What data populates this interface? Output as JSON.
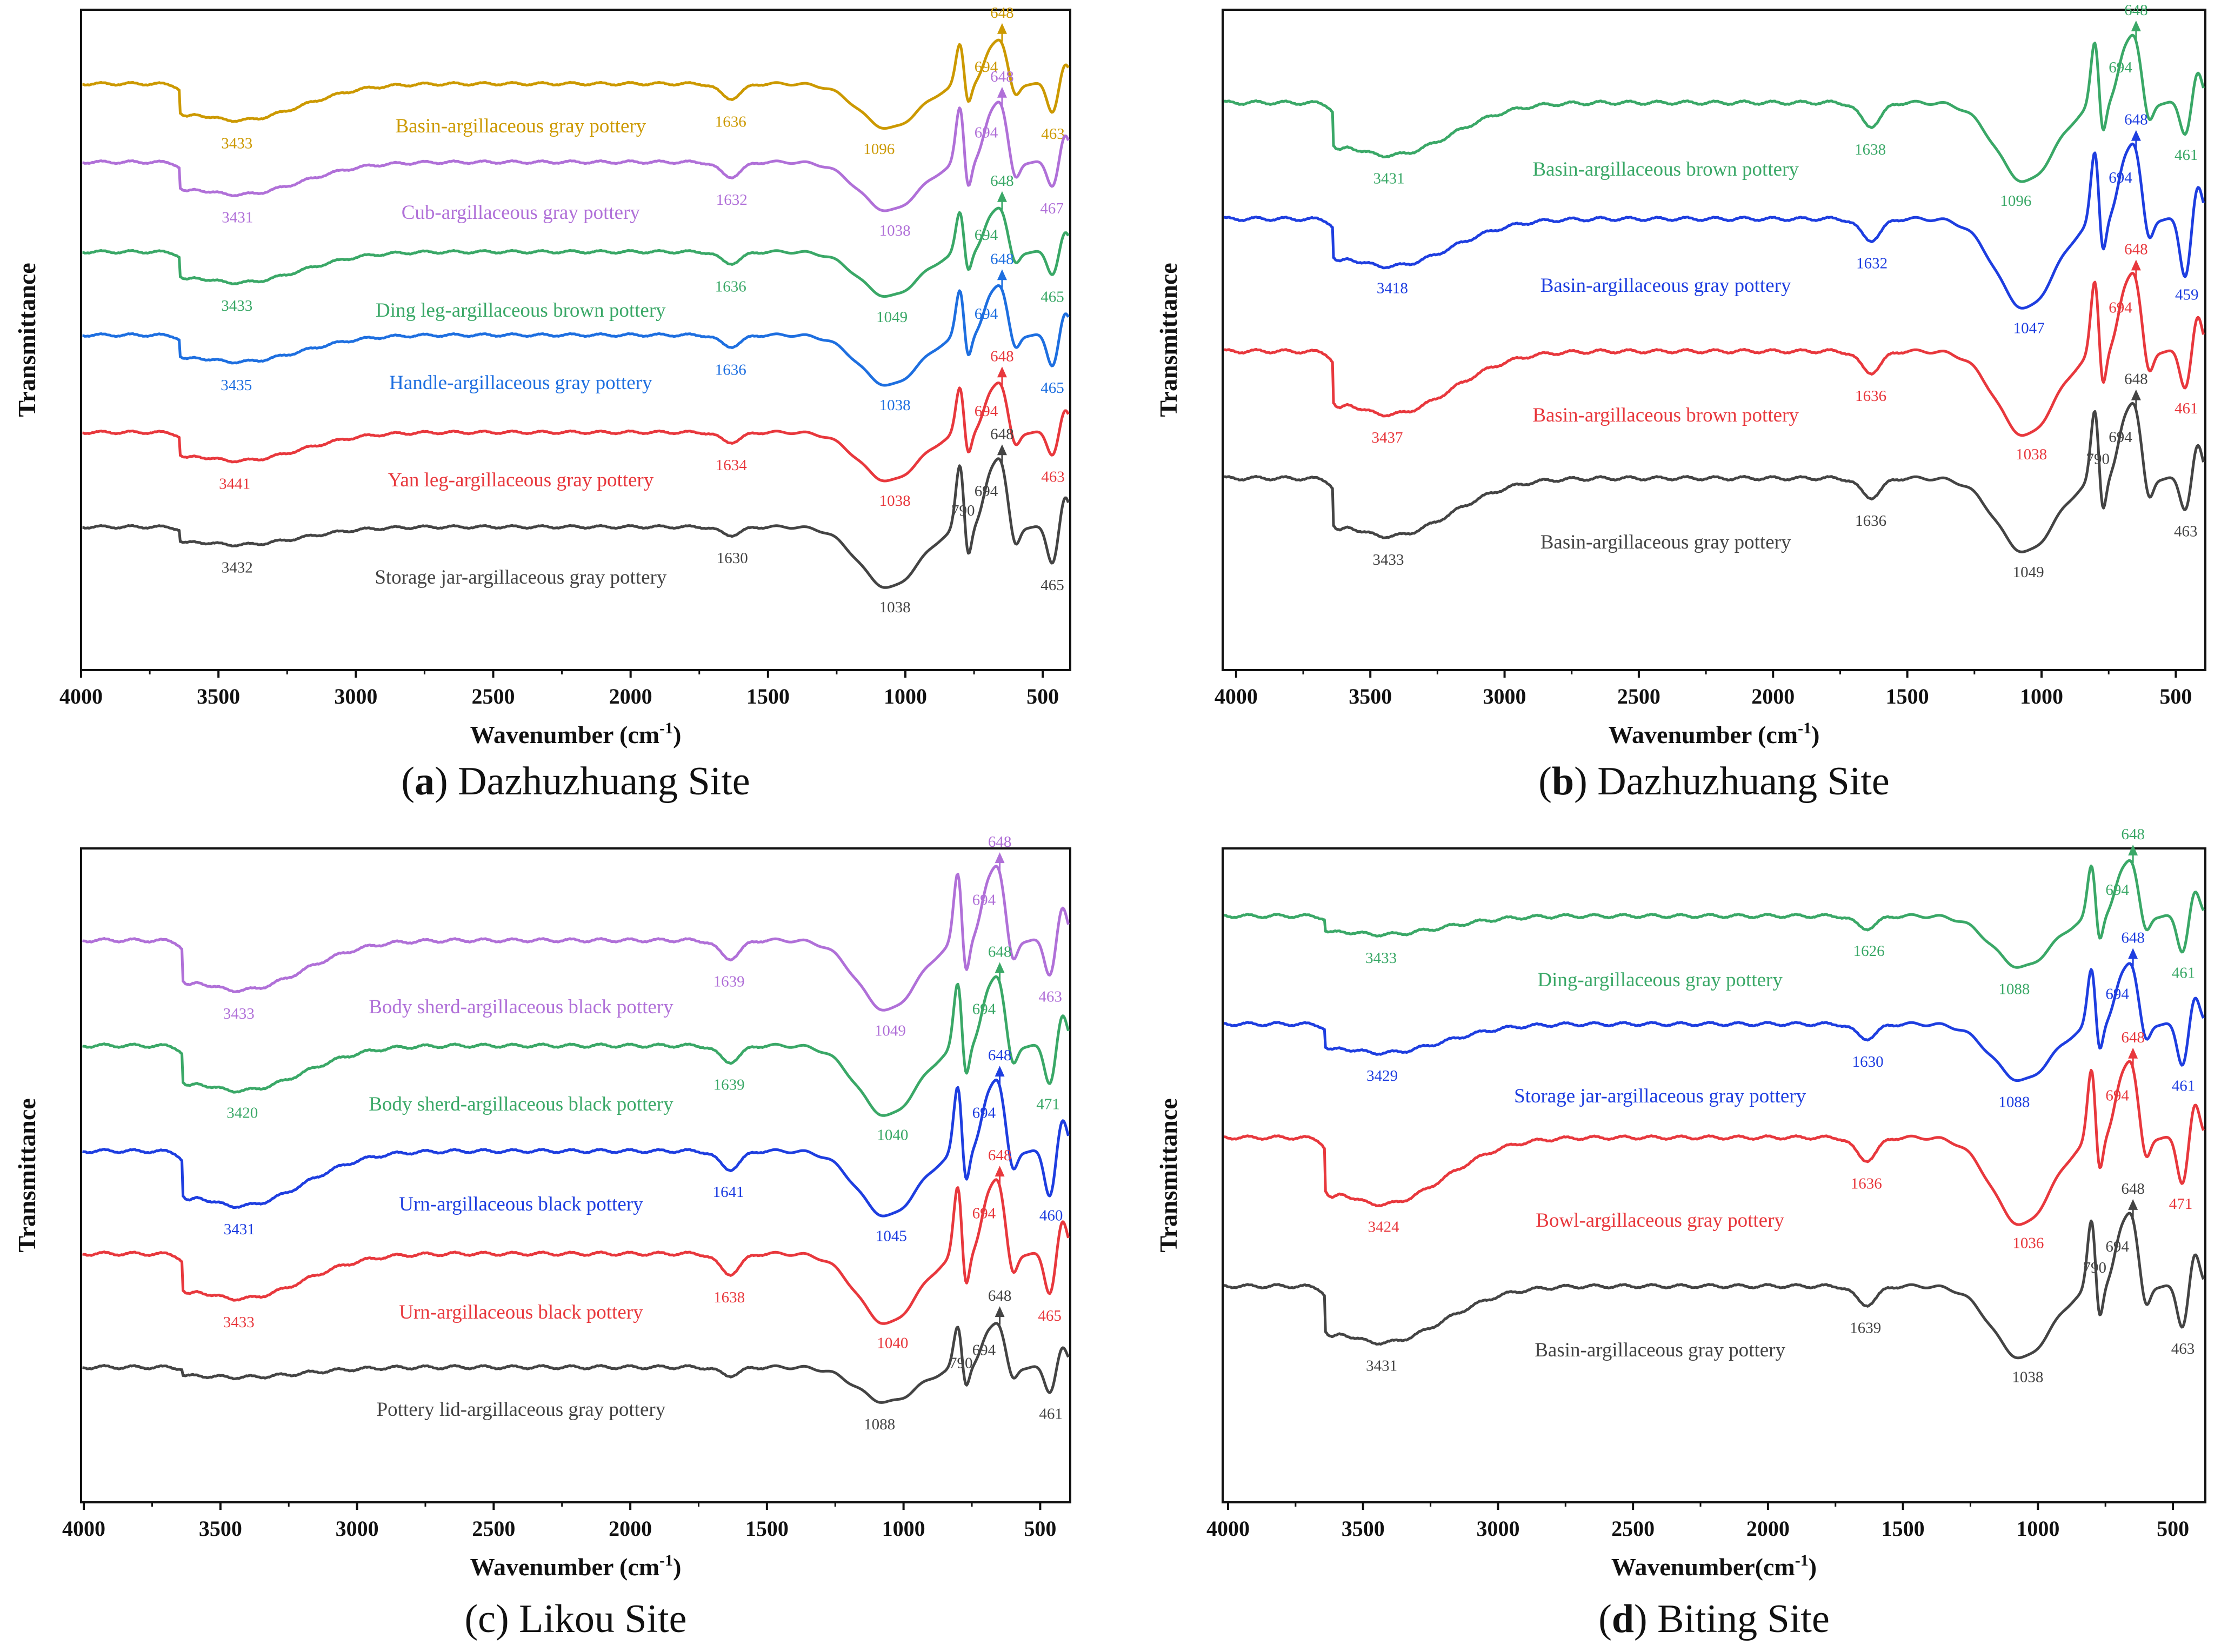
{
  "chart_data": [
    {
      "panel": "a",
      "type": "line",
      "title_letter": "a",
      "title_text": " Dazhuzhuang Site",
      "title_style": "bold-letter-paren",
      "xlabel": "Wavenumber (cm",
      "xlabel_sup": "-1",
      "xlabel_tail": ")",
      "ylabel": "Transmittance",
      "xlim": [
        4000,
        400
      ],
      "xticks": [
        4000,
        3500,
        3000,
        2500,
        2000,
        1500,
        1000,
        500
      ],
      "xlabel_style": "bold",
      "series": [
        {
          "name": "Basin-argillaceous gray pottery",
          "color": "#cc9900",
          "peaks": [
            {
              "label": "3433",
              "x": 3433
            },
            {
              "label": "1636",
              "x": 1636
            },
            {
              "label": "1096",
              "x": 1096
            },
            {
              "label": "694",
              "x": 694
            },
            {
              "label": "648",
              "x": 648,
              "arrow": true
            },
            {
              "label": "463",
              "x": 463
            }
          ]
        },
        {
          "name": "Cub-argillaceous gray pottery",
          "color": "#b070d8",
          "peaks": [
            {
              "label": "3431",
              "x": 3431
            },
            {
              "label": "1632",
              "x": 1632
            },
            {
              "label": "1038",
              "x": 1038
            },
            {
              "label": "694",
              "x": 694
            },
            {
              "label": "648",
              "x": 648,
              "arrow": true
            },
            {
              "label": "467",
              "x": 467
            }
          ]
        },
        {
          "name": "Ding leg-argillaceous brown pottery",
          "color": "#3aa867",
          "peaks": [
            {
              "label": "3433",
              "x": 3433
            },
            {
              "label": "1636",
              "x": 1636
            },
            {
              "label": "1049",
              "x": 1049
            },
            {
              "label": "694",
              "x": 694
            },
            {
              "label": "648",
              "x": 648,
              "arrow": true
            },
            {
              "label": "465",
              "x": 465
            }
          ]
        },
        {
          "name": "Handle-argillaceous gray pottery",
          "color": "#1e6fe0",
          "peaks": [
            {
              "label": "3435",
              "x": 3435
            },
            {
              "label": "1636",
              "x": 1636
            },
            {
              "label": "1038",
              "x": 1038
            },
            {
              "label": "694",
              "x": 694
            },
            {
              "label": "648",
              "x": 648,
              "arrow": true
            },
            {
              "label": "465",
              "x": 465
            }
          ]
        },
        {
          "name": "Yan leg-argillaceous gray pottery",
          "color": "#e8383d",
          "peaks": [
            {
              "label": "3441",
              "x": 3441
            },
            {
              "label": "1634",
              "x": 1634
            },
            {
              "label": "1038",
              "x": 1038
            },
            {
              "label": "694",
              "x": 694
            },
            {
              "label": "648",
              "x": 648,
              "arrow": true
            },
            {
              "label": "463",
              "x": 463
            }
          ]
        },
        {
          "name": "Storage jar-argillaceous gray pottery",
          "color": "#444444",
          "peaks": [
            {
              "label": "3432",
              "x": 3432
            },
            {
              "label": "1630",
              "x": 1630
            },
            {
              "label": "1038",
              "x": 1038
            },
            {
              "label": "790",
              "x": 790
            },
            {
              "label": "694",
              "x": 694
            },
            {
              "label": "648",
              "x": 648,
              "arrow": true
            },
            {
              "label": "465",
              "x": 465
            }
          ]
        }
      ]
    },
    {
      "panel": "b",
      "type": "line",
      "title_letter": "b",
      "title_text": " Dazhuzhuang Site",
      "title_style": "bold-letter-paren",
      "xlabel": "Wavenumber (cm",
      "xlabel_sup": "-1",
      "xlabel_tail": ")",
      "ylabel": "Transmittance",
      "xlim": [
        4050,
        390
      ],
      "xticks": [
        4000,
        3500,
        3000,
        2500,
        2000,
        1500,
        1000,
        500
      ],
      "xlabel_style": "bold",
      "series": [
        {
          "name": "Basin-argillaceous brown pottery",
          "color": "#3aa867",
          "peaks": [
            {
              "label": "3431",
              "x": 3431
            },
            {
              "label": "1638",
              "x": 1638
            },
            {
              "label": "1096",
              "x": 1096
            },
            {
              "label": "694",
              "x": 694
            },
            {
              "label": "648",
              "x": 648,
              "arrow": true
            },
            {
              "label": "461",
              "x": 461
            }
          ]
        },
        {
          "name": "Basin-argillaceous gray pottery",
          "color": "#1e3ee0",
          "peaks": [
            {
              "label": "3418",
              "x": 3418
            },
            {
              "label": "1632",
              "x": 1632
            },
            {
              "label": "1047",
              "x": 1047
            },
            {
              "label": "694",
              "x": 694
            },
            {
              "label": "648",
              "x": 648,
              "arrow": true
            },
            {
              "label": "459",
              "x": 459
            }
          ]
        },
        {
          "name": "Basin-argillaceous brown pottery",
          "color": "#e8383d",
          "peaks": [
            {
              "label": "3437",
              "x": 3437
            },
            {
              "label": "1636",
              "x": 1636
            },
            {
              "label": "1038",
              "x": 1038
            },
            {
              "label": "694",
              "x": 694
            },
            {
              "label": "648",
              "x": 648,
              "arrow": true
            },
            {
              "label": "461",
              "x": 461
            }
          ]
        },
        {
          "name": "Basin-argillaceous gray pottery",
          "color": "#444444",
          "peaks": [
            {
              "label": "3433",
              "x": 3433
            },
            {
              "label": "1636",
              "x": 1636
            },
            {
              "label": "1049",
              "x": 1049
            },
            {
              "label": "790",
              "x": 790
            },
            {
              "label": "694",
              "x": 694
            },
            {
              "label": "648",
              "x": 648,
              "arrow": true
            },
            {
              "label": "463",
              "x": 463
            }
          ]
        }
      ]
    },
    {
      "panel": "c",
      "type": "line",
      "title_letter": "c",
      "title_text": " Likou Site",
      "title_style": "plain-paren",
      "xlabel": "Wavenumber (cm",
      "xlabel_sup": "-1",
      "xlabel_tail": ")",
      "ylabel": "Transmittance",
      "xlim": [
        4010,
        390
      ],
      "xticks": [
        4000,
        3500,
        3000,
        2500,
        2000,
        1500,
        1000,
        500
      ],
      "xlabel_style": "bold",
      "series": [
        {
          "name": "Body sherd-argillaceous black pottery",
          "color": "#b070d8",
          "peaks": [
            {
              "label": "3433",
              "x": 3433
            },
            {
              "label": "1639",
              "x": 1639
            },
            {
              "label": "1049",
              "x": 1049
            },
            {
              "label": "694",
              "x": 694
            },
            {
              "label": "648",
              "x": 648,
              "arrow": true
            },
            {
              "label": "463",
              "x": 463
            }
          ]
        },
        {
          "name": "Body sherd-argillaceous black pottery",
          "color": "#3aa867",
          "peaks": [
            {
              "label": "3420",
              "x": 3420
            },
            {
              "label": "1639",
              "x": 1639
            },
            {
              "label": "1040",
              "x": 1040
            },
            {
              "label": "694",
              "x": 694
            },
            {
              "label": "648",
              "x": 648,
              "arrow": true
            },
            {
              "label": "471",
              "x": 471
            }
          ]
        },
        {
          "name": "Urn-argillaceous black pottery",
          "color": "#1e3ee0",
          "peaks": [
            {
              "label": "3431",
              "x": 3431
            },
            {
              "label": "1641",
              "x": 1641
            },
            {
              "label": "1045",
              "x": 1045
            },
            {
              "label": "694",
              "x": 694
            },
            {
              "label": "648",
              "x": 648,
              "arrow": true
            },
            {
              "label": "460",
              "x": 460
            }
          ]
        },
        {
          "name": "Urn-argillaceous black pottery",
          "color": "#e8383d",
          "peaks": [
            {
              "label": "3433",
              "x": 3433
            },
            {
              "label": "1638",
              "x": 1638
            },
            {
              "label": "1040",
              "x": 1040
            },
            {
              "label": "694",
              "x": 694
            },
            {
              "label": "648",
              "x": 648,
              "arrow": true
            },
            {
              "label": "465",
              "x": 465
            }
          ]
        },
        {
          "name": "Pottery lid-argillaceous gray pottery",
          "color": "#444444",
          "peaks": [
            {
              "label": "1088",
              "x": 1088
            },
            {
              "label": "790",
              "x": 790
            },
            {
              "label": "694",
              "x": 694
            },
            {
              "label": "648",
              "x": 648,
              "arrow": true
            },
            {
              "label": "461",
              "x": 461
            }
          ]
        }
      ]
    },
    {
      "panel": "d",
      "type": "line",
      "title_letter": "d",
      "title_text": " Biting Site",
      "title_style": "bold-letter-paren",
      "xlabel": "Wavenumber(cm",
      "xlabel_sup": "-1",
      "xlabel_tail": ")",
      "ylabel": "Transmittance",
      "xlim": [
        4020,
        380
      ],
      "xticks": [
        4000,
        3500,
        3000,
        2500,
        2000,
        1500,
        1000,
        500
      ],
      "xlabel_style": "normal",
      "series": [
        {
          "name": "Ding-argillaceous gray pottery",
          "color": "#3aa867",
          "peaks": [
            {
              "label": "3433",
              "x": 3433
            },
            {
              "label": "1626",
              "x": 1626
            },
            {
              "label": "1088",
              "x": 1088
            },
            {
              "label": "694",
              "x": 694
            },
            {
              "label": "648",
              "x": 648,
              "arrow": true
            },
            {
              "label": "461",
              "x": 461
            }
          ]
        },
        {
          "name": "Storage jar-argillaceous gray pottery",
          "color": "#1e3ee0",
          "peaks": [
            {
              "label": "3429",
              "x": 3429
            },
            {
              "label": "1630",
              "x": 1630
            },
            {
              "label": "1088",
              "x": 1088
            },
            {
              "label": "694",
              "x": 694
            },
            {
              "label": "648",
              "x": 648,
              "arrow": true
            },
            {
              "label": "461",
              "x": 461
            }
          ]
        },
        {
          "name": "Bowl-argillaceous gray pottery",
          "color": "#e8383d",
          "peaks": [
            {
              "label": "3424",
              "x": 3424
            },
            {
              "label": "1636",
              "x": 1636
            },
            {
              "label": "1036",
              "x": 1036
            },
            {
              "label": "694",
              "x": 694
            },
            {
              "label": "648",
              "x": 648,
              "arrow": true
            },
            {
              "label": "471",
              "x": 471
            }
          ]
        },
        {
          "name": "Basin-argillaceous gray pottery",
          "color": "#444444",
          "peaks": [
            {
              "label": "3431",
              "x": 3431
            },
            {
              "label": "1639",
              "x": 1639
            },
            {
              "label": "1038",
              "x": 1038
            },
            {
              "label": "790",
              "x": 790
            },
            {
              "label": "694",
              "x": 694
            },
            {
              "label": "648",
              "x": 648,
              "arrow": true
            },
            {
              "label": "463",
              "x": 463
            }
          ]
        }
      ]
    }
  ]
}
